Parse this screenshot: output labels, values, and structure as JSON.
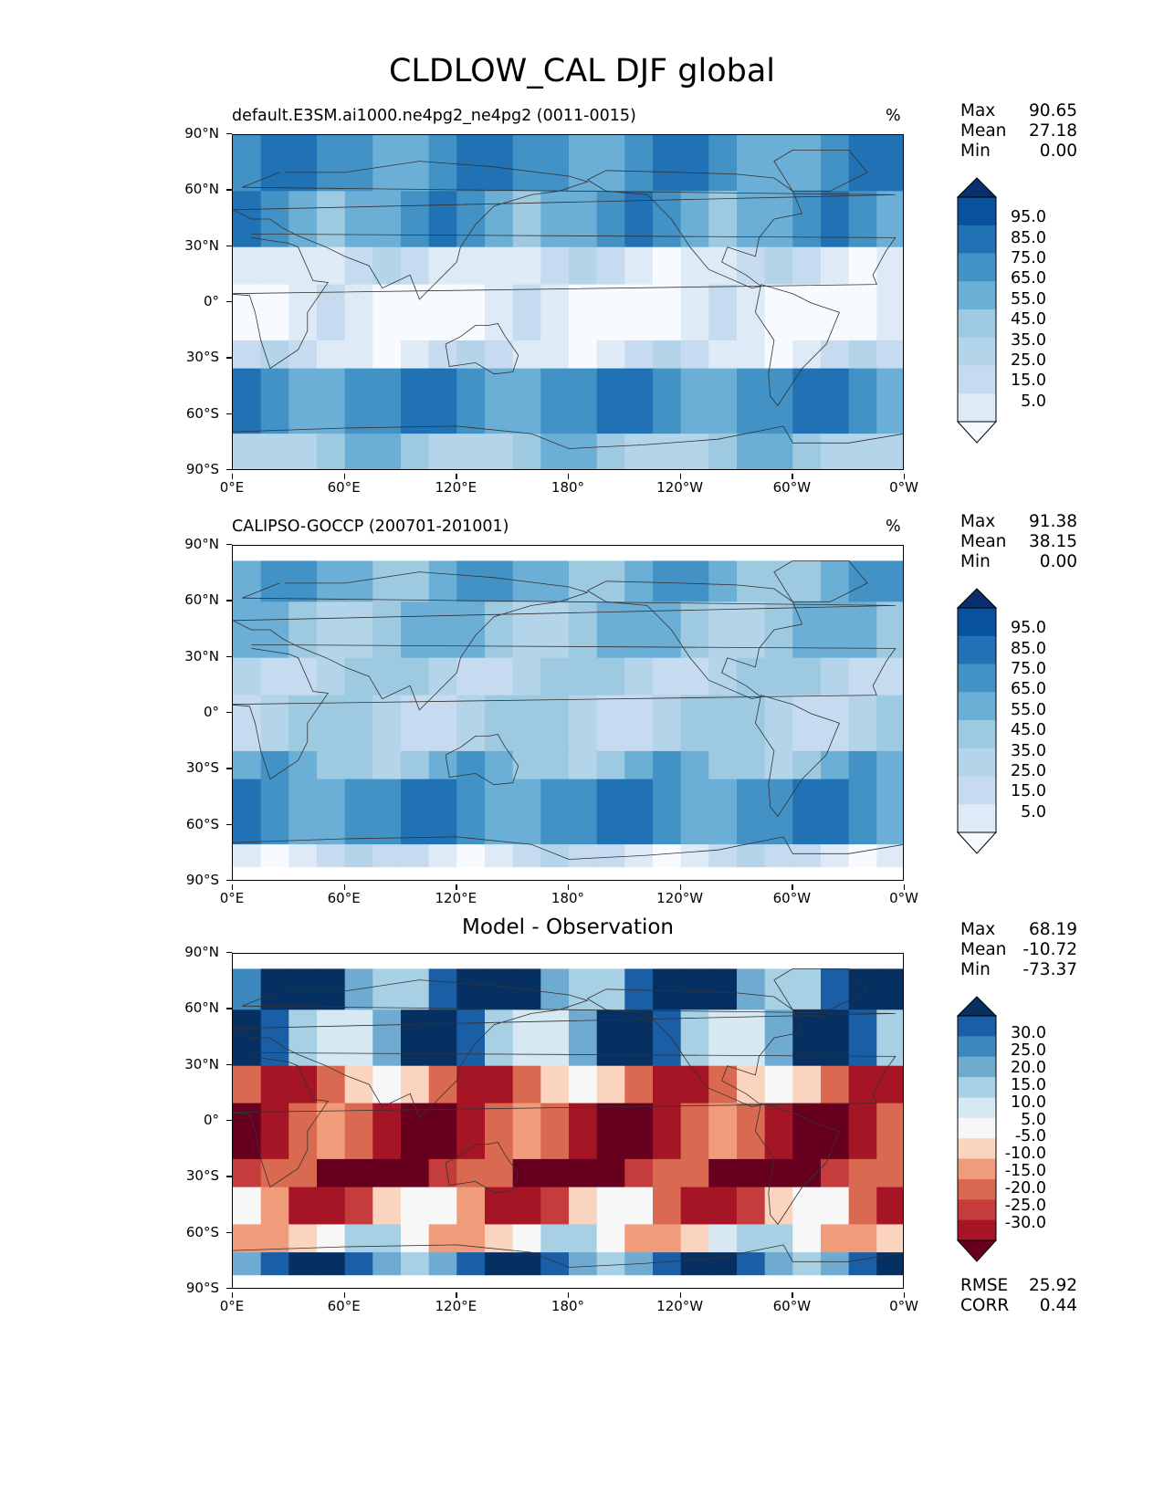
{
  "figure_title": "CLDLOW_CAL DJF global",
  "lat_ticks": [
    "90°N",
    "60°N",
    "30°N",
    "0°",
    "30°S",
    "60°S",
    "90°S"
  ],
  "lon_ticks": [
    "0°E",
    "60°E",
    "120°E",
    "180°",
    "120°W",
    "60°W",
    "0°W"
  ],
  "colors": {
    "blues": [
      "#f7fbff",
      "#deebf7",
      "#c6dbef",
      "#b4d4e9",
      "#9ecae1",
      "#6baed6",
      "#4292c6",
      "#2171b5",
      "#08519c",
      "#08306b"
    ],
    "diverging": [
      "#67001f",
      "#a51526",
      "#c43c3c",
      "#d96951",
      "#f09c7b",
      "#fbd4c0",
      "#f7f7f7",
      "#d6e8f2",
      "#a8d0e4",
      "#6fabd1",
      "#3c88be",
      "#1a5ea6",
      "#053061"
    ]
  },
  "panels": [
    {
      "name": "test",
      "title": "default.E3SM.ai1000.ne4pg2_ne4pg2 (0011-0015)",
      "units": "%",
      "stats": [
        {
          "label": "Max",
          "value": "90.65"
        },
        {
          "label": "Mean",
          "value": "27.18"
        },
        {
          "label": "Min",
          "value": "0.00"
        }
      ],
      "colorbar_labels": [
        "95.0",
        "85.0",
        "75.0",
        "65.0",
        "55.0",
        "45.0",
        "35.0",
        "25.0",
        "15.0",
        "5.0"
      ],
      "colormap": "blues"
    },
    {
      "name": "reference",
      "title": "CALIPSO-GOCCP (200701-201001)",
      "units": "%",
      "stats": [
        {
          "label": "Max",
          "value": "91.38"
        },
        {
          "label": "Mean",
          "value": "38.15"
        },
        {
          "label": "Min",
          "value": "0.00"
        }
      ],
      "colorbar_labels": [
        "95.0",
        "85.0",
        "75.0",
        "65.0",
        "55.0",
        "45.0",
        "35.0",
        "25.0",
        "15.0",
        "5.0"
      ],
      "colormap": "blues"
    },
    {
      "name": "difference",
      "title": "Model - Observation",
      "units": "",
      "stats": [
        {
          "label": "Max",
          "value": "68.19"
        },
        {
          "label": "Mean",
          "value": "-10.72"
        },
        {
          "label": "Min",
          "value": "-73.37"
        }
      ],
      "colorbar_labels": [
        "30.0",
        "25.0",
        "20.0",
        "15.0",
        "10.0",
        "5.0",
        "-5.0",
        "-10.0",
        "-15.0",
        "-20.0",
        "-25.0",
        "-30.0"
      ],
      "colormap": "diverging",
      "extra_stats": [
        {
          "label": "RMSE",
          "value": "25.92"
        },
        {
          "label": "CORR",
          "value": "0.44"
        }
      ]
    }
  ],
  "chart_data": [
    {
      "type": "heatmap",
      "title": "default.E3SM.ai1000.ne4pg2_ne4pg2 (0011-0015)",
      "xlim": [
        0,
        360
      ],
      "ylim": [
        -90,
        90
      ],
      "zones": [
        {
          "lat": [
            60,
            90
          ],
          "value": 65
        },
        {
          "lat": [
            30,
            60
          ],
          "value": 60
        },
        {
          "lat": [
            10,
            30
          ],
          "value": 20
        },
        {
          "lat": [
            -20,
            10
          ],
          "value": 10
        },
        {
          "lat": [
            -35,
            -20
          ],
          "value": 20
        },
        {
          "lat": [
            -70,
            -35
          ],
          "value": 65
        },
        {
          "lat": [
            -90,
            -70
          ],
          "value": 45
        }
      ],
      "colorbar_levels": [
        5,
        15,
        25,
        35,
        45,
        55,
        65,
        75,
        85,
        95
      ]
    },
    {
      "type": "heatmap",
      "title": "CALIPSO-GOCCP (200701-201001)",
      "xlim": [
        0,
        360
      ],
      "ylim": [
        -90,
        90
      ],
      "zones": [
        {
          "lat": [
            60,
            82
          ],
          "value": 55
        },
        {
          "lat": [
            30,
            60
          ],
          "value": 45
        },
        {
          "lat": [
            10,
            30
          ],
          "value": 35
        },
        {
          "lat": [
            -20,
            10
          ],
          "value": 35
        },
        {
          "lat": [
            -35,
            -20
          ],
          "value": 50
        },
        {
          "lat": [
            -70,
            -35
          ],
          "value": 65
        },
        {
          "lat": [
            -82,
            -70
          ],
          "value": 20
        }
      ],
      "colorbar_levels": [
        5,
        15,
        25,
        35,
        45,
        55,
        65,
        75,
        85,
        95
      ]
    },
    {
      "type": "heatmap",
      "title": "Model - Observation",
      "xlim": [
        0,
        360
      ],
      "ylim": [
        -90,
        90
      ],
      "zones": [
        {
          "lat": [
            60,
            82
          ],
          "value": 25
        },
        {
          "lat": [
            30,
            60
          ],
          "value": 20
        },
        {
          "lat": [
            10,
            30
          ],
          "value": -15
        },
        {
          "lat": [
            -20,
            10
          ],
          "value": -25
        },
        {
          "lat": [
            -35,
            -20
          ],
          "value": -30
        },
        {
          "lat": [
            -55,
            -35
          ],
          "value": -15
        },
        {
          "lat": [
            -70,
            -55
          ],
          "value": 0
        },
        {
          "lat": [
            -82,
            -70
          ],
          "value": 25
        }
      ],
      "colorbar_levels": [
        -30,
        -25,
        -20,
        -15,
        -10,
        -5,
        5,
        10,
        15,
        20,
        25,
        30
      ]
    }
  ]
}
